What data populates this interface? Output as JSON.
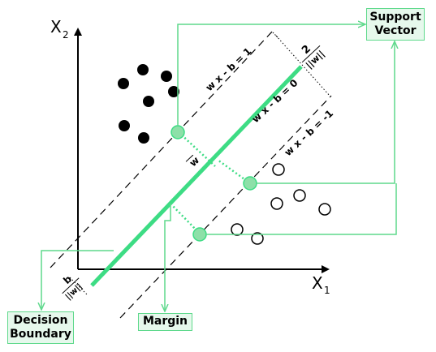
{
  "axes": {
    "x_label": "X",
    "x_sub": "1",
    "y_label": "X",
    "y_sub": "2"
  },
  "lines": {
    "upper": "w x - b = 1",
    "middle": "w x - b = 0",
    "lower": "w x - b = -1"
  },
  "annotations": {
    "margin_numerator": "2",
    "margin_denominator": "||w||",
    "offset_numerator": "b",
    "offset_denominator": "||w||",
    "normal_vector": "w"
  },
  "labels": {
    "support_vector_line1": "Support",
    "support_vector_line2": "Vector",
    "decision_boundary_line1": "Decision",
    "decision_boundary_line2": "Boundary",
    "margin": "Margin"
  },
  "colors": {
    "accent": "#5fd98c",
    "accent_fill": "#e6f8ec",
    "boundary": "#3ddc84",
    "ink": "#000000"
  }
}
